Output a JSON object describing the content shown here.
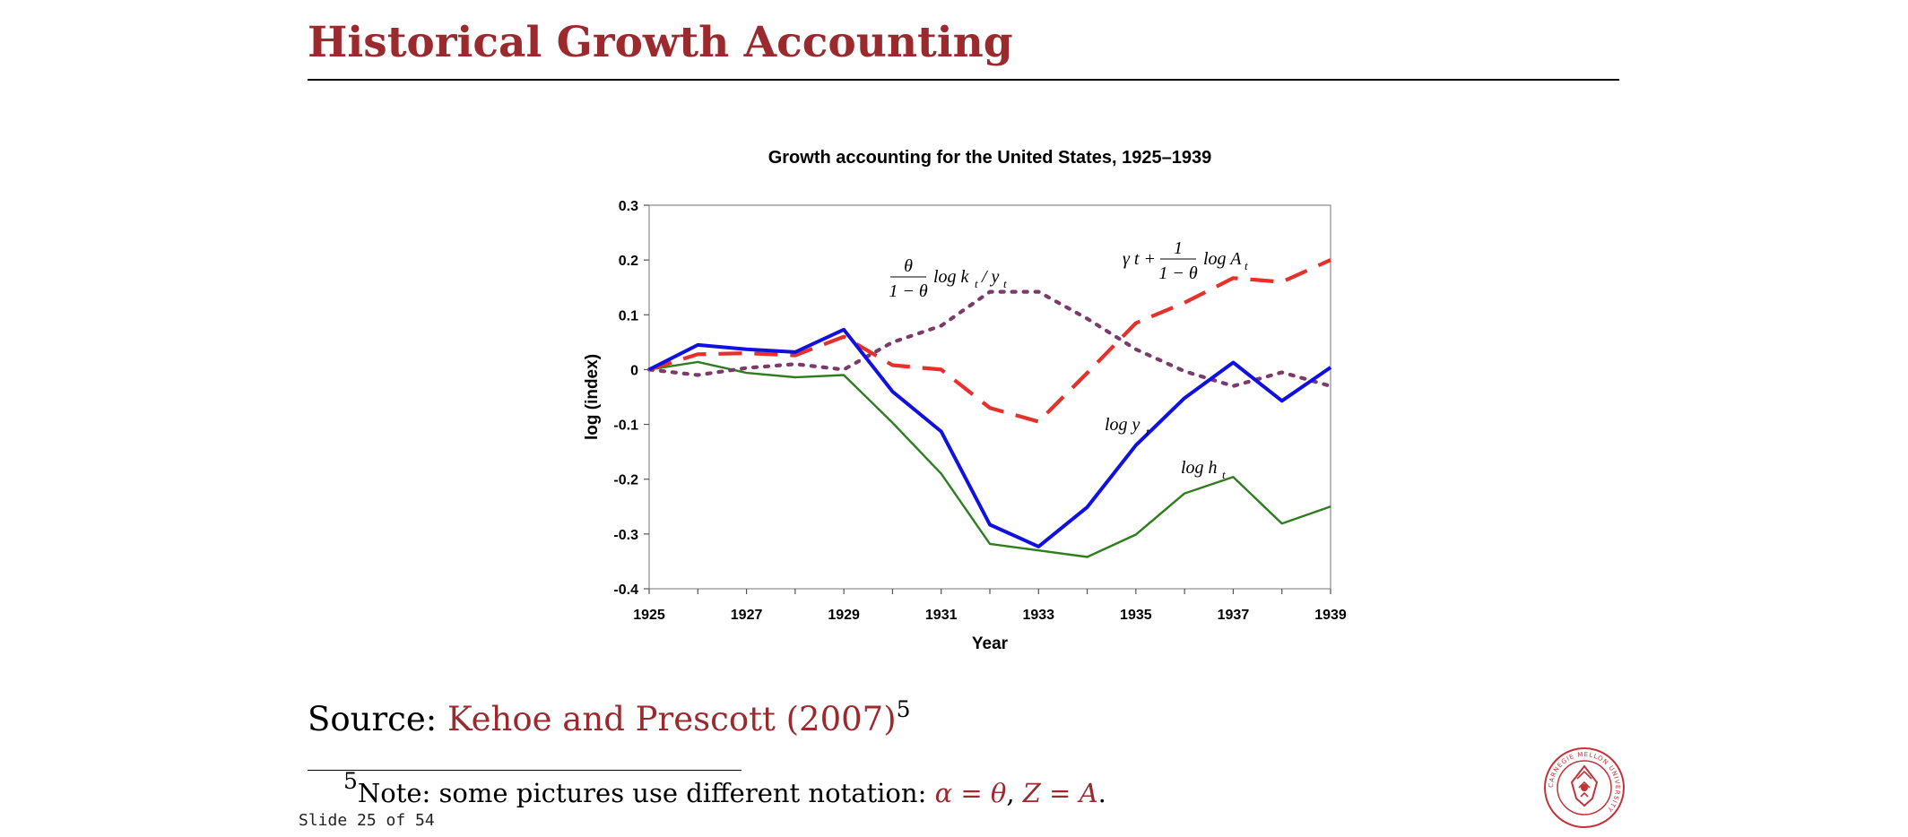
{
  "slide": {
    "title": "Historical Growth Accounting",
    "source_label": "Source: ",
    "source_citation": "Kehoe and Prescott (2007)",
    "footnote_marker": "5",
    "footnote_prefix": "Note: some pictures use different notation: ",
    "footnote_math1": "α = θ",
    "footnote_sep": ", ",
    "footnote_math2": "Z = A",
    "footnote_end": ".",
    "counter": "Slide 25 of 54",
    "seal_text": "CARNEGIE MELLON UNIVERSITY"
  },
  "colors": {
    "title": "#9b2a2e",
    "log_y": "#1010e0",
    "log_h": "#2e7d1e",
    "log_ky": "#7b3b6a",
    "log_A": "#e8302a"
  },
  "chart_data": {
    "type": "line",
    "title": "Growth accounting for the United States, 1925–1939",
    "xlabel": "Year",
    "ylabel": "log (index)",
    "xlim": [
      1925,
      1939
    ],
    "ylim": [
      -0.4,
      0.3
    ],
    "x_ticks": [
      "1925",
      "1927",
      "1929",
      "1931",
      "1933",
      "1935",
      "1937",
      "1939"
    ],
    "y_ticks": [
      "0.3",
      "0.2",
      "0.1",
      "0",
      "-0.1",
      "-0.2",
      "-0.3",
      "-0.4"
    ],
    "x": [
      1925,
      1926,
      1927,
      1928,
      1929,
      1930,
      1931,
      1932,
      1933,
      1934,
      1935,
      1936,
      1937,
      1938,
      1939
    ],
    "series": [
      {
        "name": "log y_t",
        "style": "solid-thick",
        "color": "#1010e0",
        "values": [
          0,
          0.045,
          0.037,
          0.032,
          0.073,
          -0.04,
          -0.113,
          -0.283,
          -0.323,
          -0.251,
          -0.138,
          -0.052,
          0.013,
          -0.057,
          0.004
        ]
      },
      {
        "name": "log h_t",
        "style": "solid",
        "color": "#2e7d1e",
        "values": [
          0,
          0.014,
          -0.006,
          -0.014,
          -0.01,
          -0.097,
          -0.19,
          -0.318,
          -0.33,
          -0.342,
          -0.301,
          -0.226,
          -0.196,
          -0.281,
          -0.25
        ]
      },
      {
        "name": "θ/(1−θ) log k_t/y_t",
        "style": "dotted",
        "color": "#7b3b6a",
        "values": [
          0,
          -0.01,
          0.003,
          0.01,
          0,
          0.05,
          0.08,
          0.142,
          0.142,
          0.093,
          0.037,
          -0.003,
          -0.03,
          -0.005,
          -0.03
        ]
      },
      {
        "name": "γt + 1/(1−θ) log A_t",
        "style": "dashed",
        "color": "#e8302a",
        "values": [
          0,
          0.028,
          0.03,
          0.026,
          0.06,
          0.008,
          0,
          -0.07,
          -0.095,
          -0.006,
          0.085,
          0.122,
          0.167,
          0.16,
          0.2
        ]
      }
    ],
    "annotations": [
      {
        "series": 2,
        "frac_num": "θ",
        "frac_den": "1 − θ",
        "rest": "log k",
        "sub1": "t",
        "slash": " / y",
        "sub2": "t"
      },
      {
        "series": 3,
        "prefix": "γ t + ",
        "frac_num": "1",
        "frac_den": "1 − θ",
        "rest": "log A",
        "sub1": "t"
      },
      {
        "series": 0,
        "rest": "log y",
        "sub1": "t"
      },
      {
        "series": 1,
        "rest": "log h",
        "sub1": "t"
      }
    ]
  }
}
